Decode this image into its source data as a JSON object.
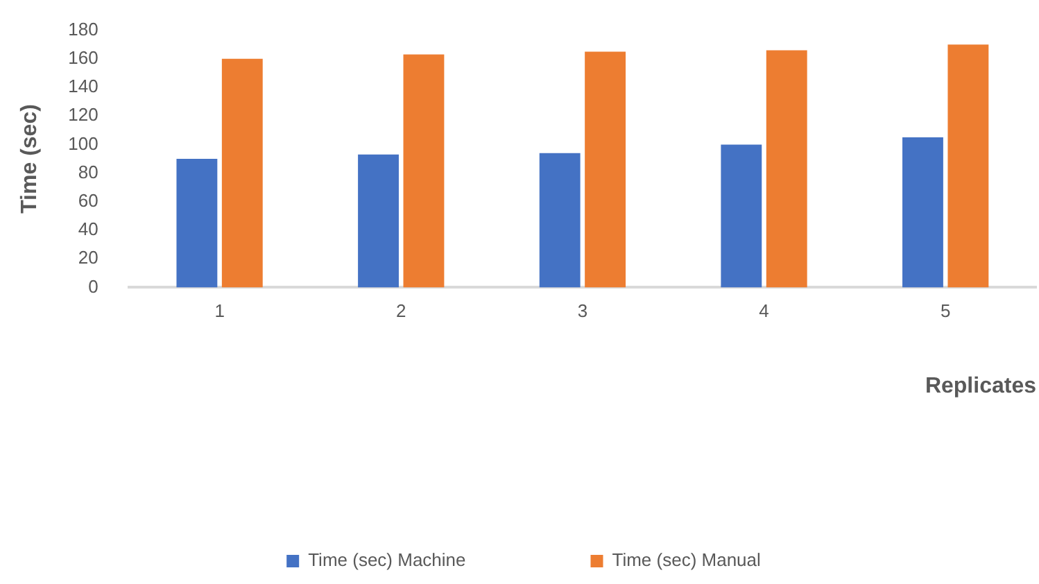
{
  "chart_data": {
    "type": "bar",
    "xlabel": "Replicates",
    "ylabel": "Time (sec)",
    "categories": [
      "1",
      "2",
      "3",
      "4",
      "5"
    ],
    "series": [
      {
        "name": "Time (sec) Machine",
        "color": "#4472c4",
        "values": [
          90,
          93,
          94,
          100,
          105
        ]
      },
      {
        "name": "Time (sec) Manual",
        "color": "#ed7d31",
        "values": [
          160,
          163,
          165,
          166,
          170
        ]
      }
    ],
    "ylim": [
      0,
      180
    ],
    "yticks": [
      0,
      20,
      40,
      60,
      80,
      100,
      120,
      140,
      160,
      180
    ],
    "grid": false,
    "legend": "bottom"
  }
}
